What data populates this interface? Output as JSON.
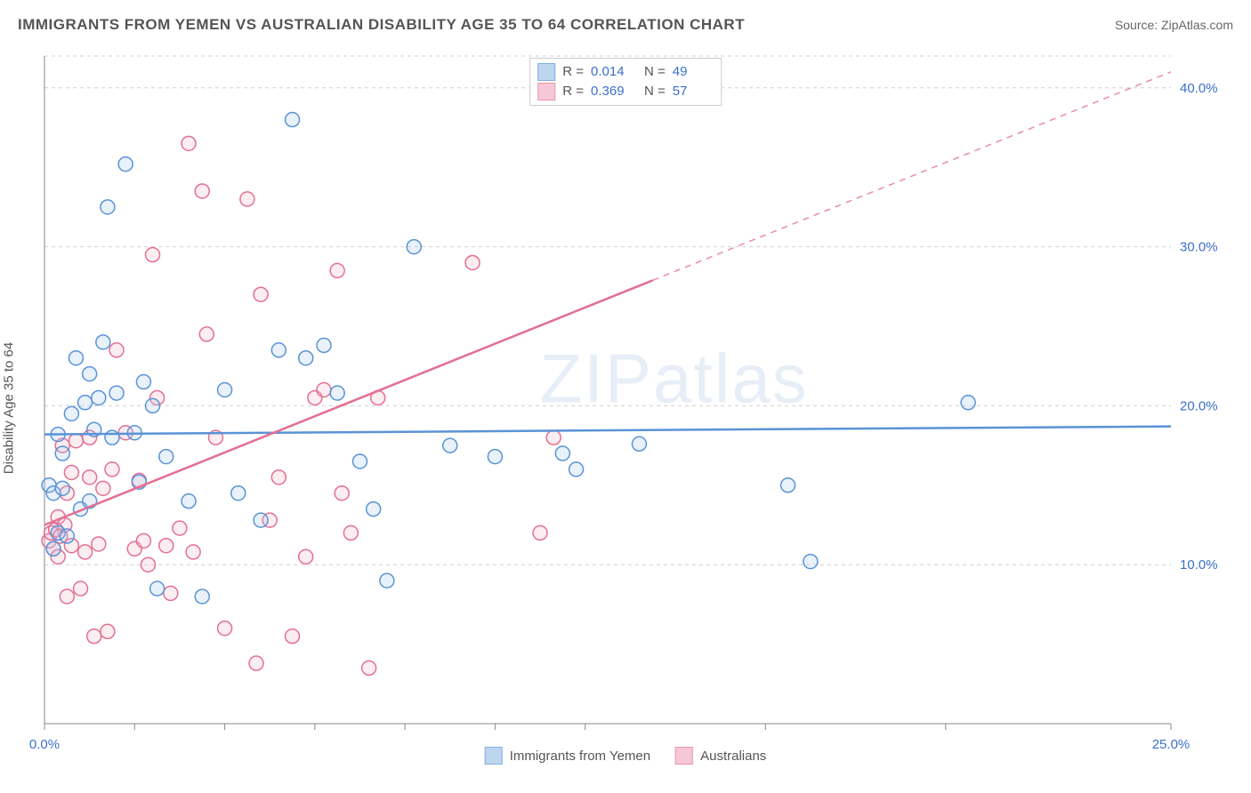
{
  "title": "IMMIGRANTS FROM YEMEN VS AUSTRALIAN DISABILITY AGE 35 TO 64 CORRELATION CHART",
  "source_label": "Source:",
  "source_name": "ZipAtlas.com",
  "watermark": "ZIPatlas",
  "ylabel": "Disability Age 35 to 64",
  "chart": {
    "type": "scatter",
    "xlim": [
      0,
      25
    ],
    "ylim": [
      0,
      42
    ],
    "x_ticks": [
      0,
      2,
      4,
      6,
      8,
      10,
      12,
      16,
      20,
      25
    ],
    "x_tick_labels_shown": {
      "0": "0.0%",
      "25": "25.0%"
    },
    "y_ticks": [
      10,
      20,
      30,
      40
    ],
    "y_tick_labels": {
      "10": "10.0%",
      "20": "20.0%",
      "30": "30.0%",
      "40": "40.0%"
    },
    "background_color": "#ffffff",
    "grid_color": "#d0d0d0",
    "axis_color": "#888888",
    "tick_label_color": "#3b6fc9",
    "marker_radius": 8,
    "marker_stroke_width": 1.5,
    "marker_fill_opacity": 0.25,
    "trend_line_width": 2.5,
    "series": [
      {
        "key": "yemen",
        "label": "Immigrants from Yemen",
        "color_stroke": "#5a93d6",
        "color_fill": "#a9c7ea",
        "R": "0.014",
        "N": "49",
        "trend": {
          "x1": 0,
          "y1": 18.2,
          "x2": 25,
          "y2": 18.7,
          "solid_until_x": 25
        },
        "points": [
          [
            0.1,
            15.0
          ],
          [
            0.2,
            14.5
          ],
          [
            0.3,
            12.0
          ],
          [
            0.3,
            18.2
          ],
          [
            0.4,
            17.0
          ],
          [
            0.5,
            11.8
          ],
          [
            0.6,
            19.5
          ],
          [
            0.7,
            23.0
          ],
          [
            0.8,
            13.5
          ],
          [
            0.9,
            20.2
          ],
          [
            1.0,
            22.0
          ],
          [
            1.0,
            14.0
          ],
          [
            1.1,
            18.5
          ],
          [
            1.2,
            20.5
          ],
          [
            1.3,
            24.0
          ],
          [
            1.4,
            32.5
          ],
          [
            1.5,
            18.0
          ],
          [
            1.6,
            20.8
          ],
          [
            1.8,
            35.2
          ],
          [
            2.0,
            18.3
          ],
          [
            2.1,
            15.2
          ],
          [
            2.2,
            21.5
          ],
          [
            2.4,
            20.0
          ],
          [
            2.5,
            8.5
          ],
          [
            2.7,
            16.8
          ],
          [
            3.2,
            14.0
          ],
          [
            3.5,
            8.0
          ],
          [
            4.0,
            21.0
          ],
          [
            4.3,
            14.5
          ],
          [
            4.8,
            12.8
          ],
          [
            5.2,
            23.5
          ],
          [
            5.5,
            38.0
          ],
          [
            5.8,
            23.0
          ],
          [
            6.2,
            23.8
          ],
          [
            6.5,
            20.8
          ],
          [
            7.0,
            16.5
          ],
          [
            7.3,
            13.5
          ],
          [
            7.6,
            9.0
          ],
          [
            8.2,
            30.0
          ],
          [
            9.0,
            17.5
          ],
          [
            10.0,
            16.8
          ],
          [
            11.5,
            17.0
          ],
          [
            11.8,
            16.0
          ],
          [
            13.2,
            17.6
          ],
          [
            16.5,
            15.0
          ],
          [
            17.0,
            10.2
          ],
          [
            20.5,
            20.2
          ],
          [
            0.2,
            11.0
          ],
          [
            0.4,
            14.8
          ]
        ]
      },
      {
        "key": "aus",
        "label": "Australians",
        "color_stroke": "#e36f93",
        "color_fill": "#f4b6c8",
        "R": "0.369",
        "N": "57",
        "trend": {
          "x1": 0,
          "y1": 12.5,
          "x2": 25,
          "y2": 41.0,
          "solid_until_x": 13.5
        },
        "points": [
          [
            0.1,
            11.5
          ],
          [
            0.15,
            12.0
          ],
          [
            0.2,
            11.0
          ],
          [
            0.25,
            12.2
          ],
          [
            0.3,
            10.5
          ],
          [
            0.3,
            13.0
          ],
          [
            0.35,
            11.8
          ],
          [
            0.4,
            17.5
          ],
          [
            0.45,
            12.5
          ],
          [
            0.5,
            8.0
          ],
          [
            0.5,
            14.5
          ],
          [
            0.6,
            11.2
          ],
          [
            0.6,
            15.8
          ],
          [
            0.7,
            17.8
          ],
          [
            0.8,
            8.5
          ],
          [
            0.9,
            10.8
          ],
          [
            1.0,
            15.5
          ],
          [
            1.0,
            18.0
          ],
          [
            1.1,
            5.5
          ],
          [
            1.2,
            11.3
          ],
          [
            1.3,
            14.8
          ],
          [
            1.4,
            5.8
          ],
          [
            1.5,
            16.0
          ],
          [
            1.6,
            23.5
          ],
          [
            1.8,
            18.3
          ],
          [
            2.0,
            11.0
          ],
          [
            2.1,
            15.3
          ],
          [
            2.2,
            11.5
          ],
          [
            2.3,
            10.0
          ],
          [
            2.5,
            20.5
          ],
          [
            2.7,
            11.2
          ],
          [
            2.8,
            8.2
          ],
          [
            3.0,
            12.3
          ],
          [
            3.2,
            36.5
          ],
          [
            3.3,
            10.8
          ],
          [
            3.5,
            33.5
          ],
          [
            3.6,
            24.5
          ],
          [
            3.8,
            18.0
          ],
          [
            4.0,
            6.0
          ],
          [
            4.5,
            33.0
          ],
          [
            4.7,
            3.8
          ],
          [
            4.8,
            27.0
          ],
          [
            5.0,
            12.8
          ],
          [
            5.2,
            15.5
          ],
          [
            5.5,
            5.5
          ],
          [
            5.8,
            10.5
          ],
          [
            6.0,
            20.5
          ],
          [
            6.2,
            21.0
          ],
          [
            6.5,
            28.5
          ],
          [
            6.6,
            14.5
          ],
          [
            6.8,
            12.0
          ],
          [
            7.2,
            3.5
          ],
          [
            7.4,
            20.5
          ],
          [
            9.5,
            29.0
          ],
          [
            11.0,
            12.0
          ],
          [
            11.3,
            18.0
          ],
          [
            2.4,
            29.5
          ]
        ]
      }
    ]
  },
  "legend_top": {
    "rows": [
      {
        "series": "yemen",
        "R_label": "R =",
        "N_label": "N ="
      },
      {
        "series": "aus",
        "R_label": "R =",
        "N_label": "N ="
      }
    ]
  }
}
